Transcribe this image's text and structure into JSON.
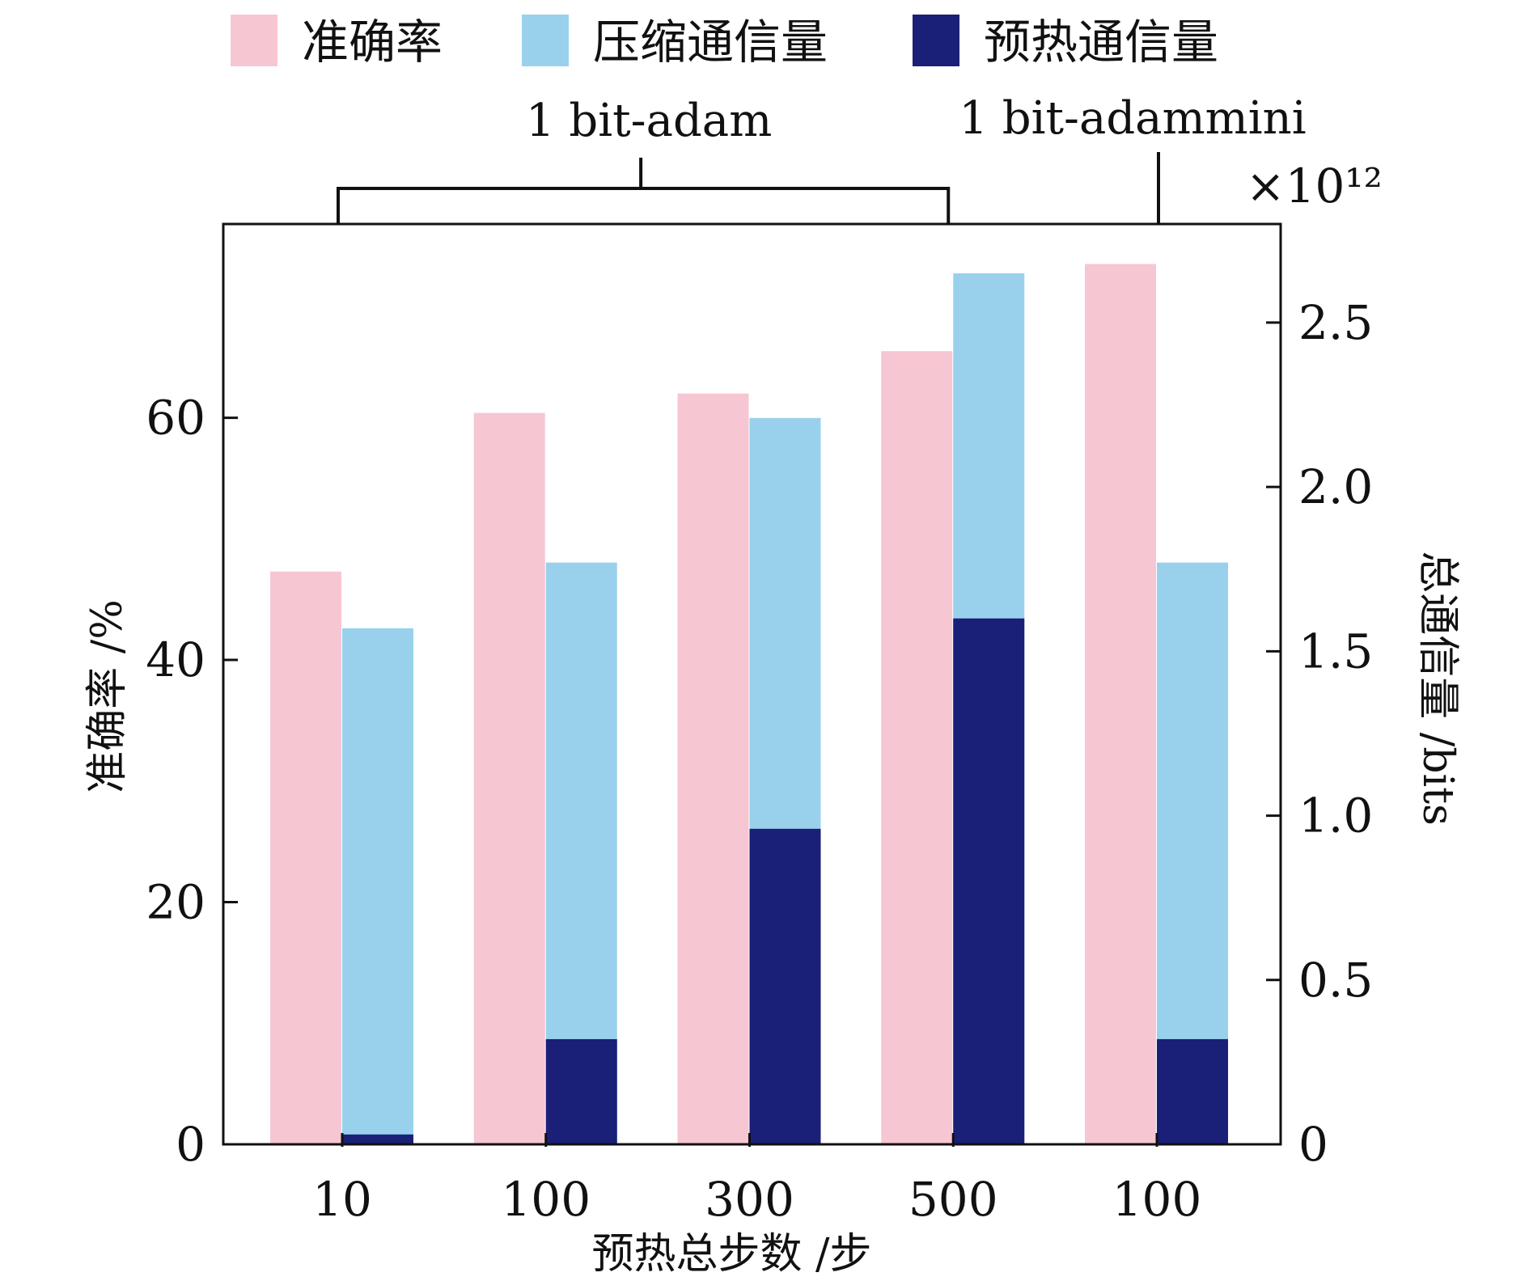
{
  "chart_data": {
    "type": "bar",
    "categories": [
      "10",
      "100",
      "300",
      "500",
      "100"
    ],
    "xlabel": "预热总步数 /步",
    "ylabel_left": "准确率 /%",
    "ylabel_right": "总通信量 /bits",
    "right_axis_multiplier": "×10¹²",
    "ylim_left": [
      0,
      76
    ],
    "ylim_right": [
      0,
      2.8
    ],
    "yticks_left": [
      0,
      20,
      40,
      60
    ],
    "yticks_right": [
      "0",
      "0.5",
      "1.0",
      "1.5",
      "2.0",
      "2.5"
    ],
    "yticks_right_values": [
      0,
      0.5,
      1.0,
      1.5,
      2.0,
      2.5
    ],
    "groups": [
      {
        "label": "1 bit-adam",
        "categories": [
          0,
          3
        ]
      },
      {
        "label": "1 bit-adammini",
        "categories": [
          4,
          4
        ]
      }
    ],
    "series": [
      {
        "name": "准确率",
        "axis": "left",
        "color": "#F7C6D3",
        "values": [
          47.3,
          60.4,
          62.0,
          65.5,
          72.7
        ]
      },
      {
        "name": "压缩通信量",
        "axis": "right",
        "stack_total": true,
        "color": "#99D1EC",
        "values": [
          1.57,
          1.77,
          2.21,
          2.65,
          1.77
        ]
      },
      {
        "name": "预热通信量",
        "axis": "right",
        "color": "#1A1F78",
        "values": [
          0.03,
          0.32,
          0.96,
          1.6,
          0.32
        ]
      }
    ],
    "legend_position": "top"
  }
}
